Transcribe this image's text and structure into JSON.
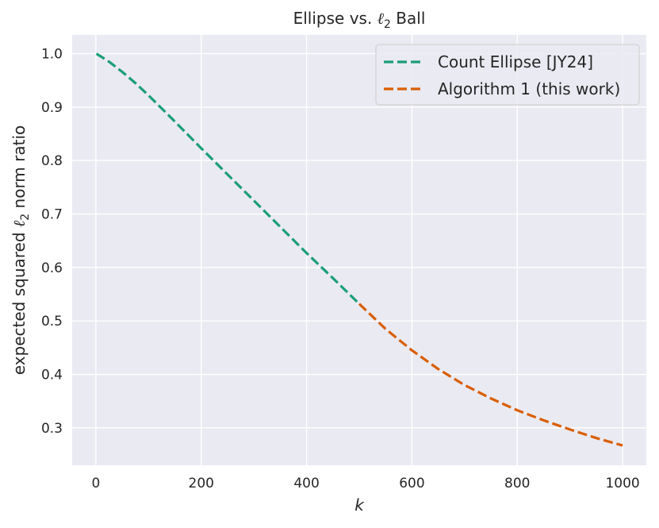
{
  "chart_data": {
    "type": "line",
    "title_pre": "Ellipse vs. ",
    "title_sym": "ℓ",
    "title_sub": "2",
    "title_post": " Ball",
    "xlabel": "k",
    "ylabel_pre": "expected squared ",
    "ylabel_sym": "ℓ",
    "ylabel_sub": "2",
    "ylabel_post": " norm ratio",
    "xlim": [
      -45,
      1045
    ],
    "ylim": [
      0.23,
      1.035
    ],
    "xticks": [
      0,
      200,
      400,
      600,
      800,
      1000
    ],
    "xtick_labels": [
      "0",
      "200",
      "400",
      "600",
      "800",
      "1000"
    ],
    "yticks": [
      0.3,
      0.4,
      0.5,
      0.6,
      0.7,
      0.8,
      0.9,
      1.0
    ],
    "ytick_labels": [
      "0.3",
      "0.4",
      "0.5",
      "0.6",
      "0.7",
      "0.8",
      "0.9",
      "1.0"
    ],
    "grid": true,
    "legend_position": "top-right",
    "background_color": "#eaeaf2",
    "series": [
      {
        "name": "Count Ellipse [JY24]",
        "color": "#1b9e77",
        "style": "dashed",
        "x": [
          1,
          25,
          50,
          75,
          100,
          150,
          200,
          250,
          300,
          350,
          400,
          450,
          500
        ],
        "y": [
          1.0,
          0.985,
          0.966,
          0.945,
          0.922,
          0.873,
          0.823,
          0.774,
          0.725,
          0.676,
          0.627,
          0.58,
          0.532
        ]
      },
      {
        "name": "Algorithm 1 (this work)",
        "color": "#d95f02",
        "style": "dashed",
        "x": [
          500,
          550,
          600,
          650,
          700,
          750,
          800,
          850,
          900,
          950,
          1000
        ],
        "y": [
          0.532,
          0.485,
          0.445,
          0.41,
          0.38,
          0.355,
          0.333,
          0.314,
          0.297,
          0.281,
          0.267
        ]
      }
    ]
  }
}
